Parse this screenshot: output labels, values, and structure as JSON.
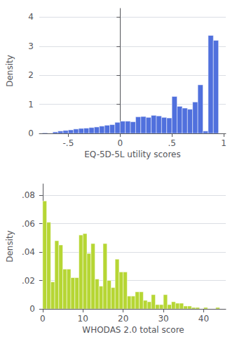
{
  "chart_data": [
    {
      "type": "histogram",
      "bins": [
        -0.75,
        -0.7,
        -0.65,
        -0.6,
        -0.55,
        -0.5,
        -0.45,
        -0.4,
        -0.35,
        -0.3,
        -0.25,
        -0.2,
        -0.15,
        -0.1,
        -0.05,
        0,
        0.05,
        0.1,
        0.15,
        0.2,
        0.25,
        0.3,
        0.35,
        0.4,
        0.45,
        0.5,
        0.55,
        0.6,
        0.65,
        0.7,
        0.75,
        0.8,
        0.85,
        0.9,
        0.95,
        1
      ],
      "values": [
        0.02,
        0,
        0.05,
        0.08,
        0.1,
        0.12,
        0.15,
        0.17,
        0.18,
        0.2,
        0.22,
        0.25,
        0.28,
        0.3,
        0.38,
        0.42,
        0.42,
        0.4,
        0.57,
        0.58,
        0.55,
        0.62,
        0.6,
        0.55,
        0.53,
        1.27,
        0.93,
        0.87,
        0.83,
        1.08,
        1.67,
        0.08,
        3.37,
        3.2,
        0
      ],
      "xlabel": "EQ-5D-5L utility scores",
      "ylabel": "Density",
      "xlim": [
        -0.78,
        1.02
      ],
      "ylim": [
        0,
        4.3
      ],
      "xticks": [
        {
          "value": -0.5,
          "label": "-.5"
        },
        0,
        {
          "value": 0.5,
          "label": ".5"
        },
        1
      ],
      "yticks": [
        0,
        1,
        2,
        3,
        4
      ],
      "grid": true
    },
    {
      "type": "histogram",
      "bins": [
        0,
        1,
        2,
        3,
        4,
        5,
        6,
        7,
        8,
        9,
        10,
        11,
        12,
        13,
        14,
        15,
        16,
        17,
        18,
        19,
        20,
        21,
        22,
        23,
        24,
        25,
        26,
        27,
        28,
        29,
        30,
        31,
        32,
        33,
        34,
        35,
        36,
        37,
        38,
        39,
        40,
        41,
        42,
        43,
        44,
        45
      ],
      "values": [
        0.076,
        0.061,
        0.019,
        0.048,
        0.045,
        0.028,
        0.028,
        0.022,
        0.022,
        0.052,
        0.053,
        0.039,
        0.046,
        0.021,
        0.016,
        0.046,
        0.02,
        0.015,
        0.035,
        0.026,
        0.026,
        0.009,
        0.009,
        0.012,
        0.012,
        0.006,
        0.005,
        0.01,
        0.003,
        0.003,
        0.01,
        0.003,
        0.005,
        0.004,
        0.004,
        0.002,
        0.002,
        0.001,
        0.001,
        0,
        0.001,
        0,
        0,
        0.001,
        0
      ],
      "xlabel": "WHODAS 2.0 total score",
      "ylabel": "Density",
      "xlim": [
        -0.5,
        45.5
      ],
      "ylim": [
        0,
        0.088
      ],
      "xticks": [
        0,
        10,
        20,
        30,
        40
      ],
      "yticks": [
        0,
        {
          "value": 0.02,
          "label": ".02"
        },
        {
          "value": 0.04,
          "label": ".04"
        },
        {
          "value": 0.06,
          "label": ".06"
        },
        {
          "value": 0.08,
          "label": ".08"
        }
      ],
      "grid": true
    }
  ]
}
